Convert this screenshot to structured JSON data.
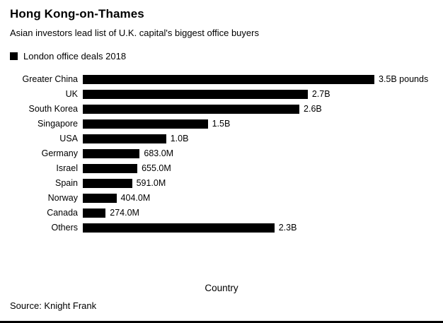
{
  "header": {
    "title": "Hong Kong-on-Thames",
    "subtitle": "Asian investors lead list of U.K. capital's biggest office buyers"
  },
  "legend": {
    "label": "London office deals 2018",
    "swatch_color": "#000000"
  },
  "chart_data": {
    "type": "bar",
    "orientation": "horizontal",
    "title": "Hong Kong-on-Thames",
    "subtitle": "Asian investors lead list of U.K. capital's biggest office buyers",
    "legend_entries": [
      "London office deals 2018"
    ],
    "categories": [
      "Greater China",
      "UK",
      "South Korea",
      "Singapore",
      "USA",
      "Germany",
      "Israel",
      "Spain",
      "Norway",
      "Canada",
      "Others"
    ],
    "values_billions": [
      3.5,
      2.7,
      2.6,
      1.5,
      1.0,
      0.683,
      0.655,
      0.591,
      0.404,
      0.274,
      2.3
    ],
    "value_labels": [
      "3.5B pounds",
      "2.7B",
      "2.6B",
      "1.5B",
      "1.0B",
      "683.0M",
      "655.0M",
      "591.0M",
      "404.0M",
      "274.0M",
      "2.3B"
    ],
    "xlabel": "Country",
    "xlim": [
      0,
      3.5
    ],
    "bar_color": "#000000",
    "grid": false,
    "legend_position": "top-left"
  },
  "footer": {
    "source": "Source: Knight Frank"
  }
}
